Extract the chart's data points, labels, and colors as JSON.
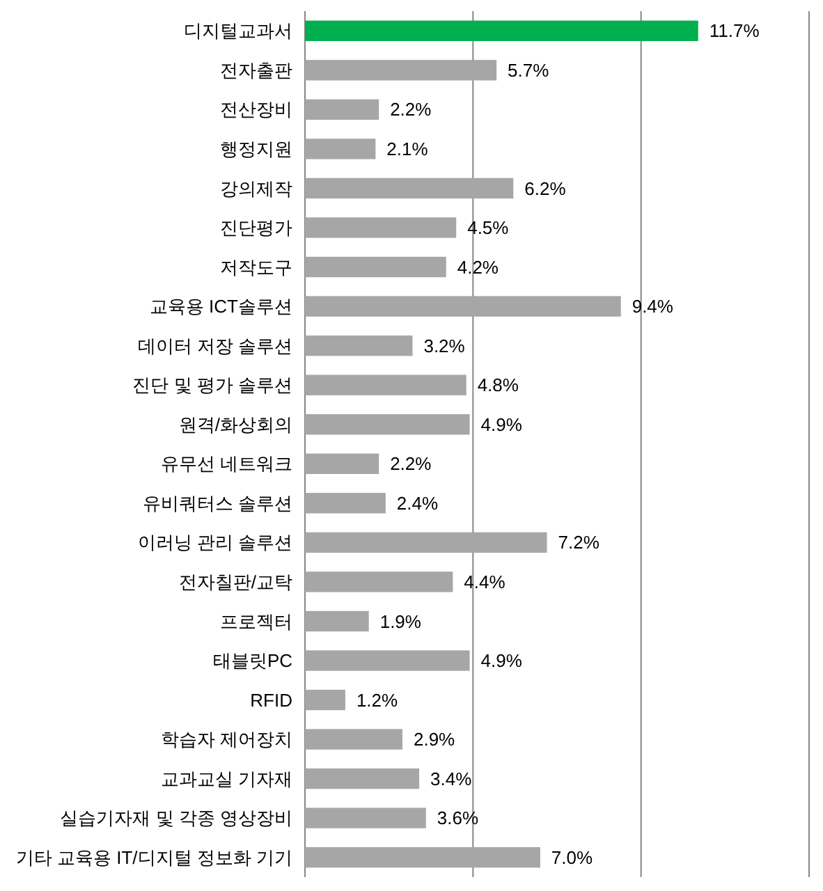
{
  "chart_data": {
    "type": "bar",
    "orientation": "horizontal",
    "categories": [
      "디지털교과서",
      "전자출판",
      "전산장비",
      "행정지원",
      "강의제작",
      "진단평가",
      "저작도구",
      "교육용 ICT솔루션",
      "데이터 저장 솔루션",
      "진단 및 평가 솔루션",
      "원격/화상회의",
      "유무선 네트워크",
      "유비쿼터스 솔루션",
      "이러닝 관리 솔루션",
      "전자칠판/교탁",
      "프로젝터",
      "태블릿PC",
      "RFID",
      "학습자 제어장치",
      "교과교실 기자재",
      "실습기자재 및 각종 영상장비",
      "기타 교육용 IT/디지털 정보화 기기"
    ],
    "values": [
      11.7,
      5.7,
      2.2,
      2.1,
      6.2,
      4.5,
      4.2,
      9.4,
      3.2,
      4.8,
      4.9,
      2.2,
      2.4,
      7.2,
      4.4,
      1.9,
      4.9,
      1.2,
      2.9,
      3.4,
      3.6,
      7.0
    ],
    "value_labels": [
      "11.7%",
      "5.7%",
      "2.2%",
      "2.1%",
      "6.2%",
      "4.5%",
      "4.2%",
      "9.4%",
      "3.2%",
      "4.8%",
      "4.9%",
      "2.2%",
      "2.4%",
      "7.2%",
      "4.4%",
      "1.9%",
      "4.9%",
      "1.2%",
      "2.9%",
      "3.4%",
      "3.6%",
      "7.0%"
    ],
    "colors": [
      "#00b050",
      "#a6a6a6",
      "#a6a6a6",
      "#a6a6a6",
      "#a6a6a6",
      "#a6a6a6",
      "#a6a6a6",
      "#a6a6a6",
      "#a6a6a6",
      "#a6a6a6",
      "#a6a6a6",
      "#a6a6a6",
      "#a6a6a6",
      "#a6a6a6",
      "#a6a6a6",
      "#a6a6a6",
      "#a6a6a6",
      "#a6a6a6",
      "#a6a6a6",
      "#a6a6a6",
      "#a6a6a6",
      "#a6a6a6"
    ],
    "xlim": [
      0,
      15
    ],
    "xticks": [
      {
        "value": 0,
        "label": null
      },
      {
        "value": 5,
        "label": null
      },
      {
        "value": 10,
        "label": null
      },
      {
        "value": 15,
        "label": null
      }
    ],
    "grid": "x",
    "tick_labels": "y"
  }
}
